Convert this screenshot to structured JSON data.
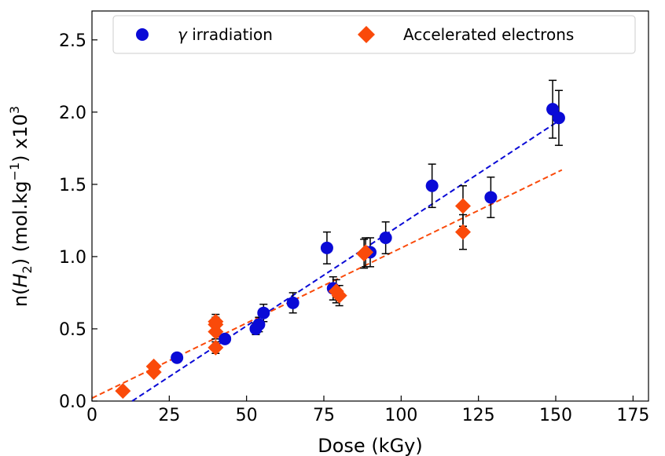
{
  "chart_data": {
    "type": "scatter",
    "title": "",
    "xlabel": "Dose (kGy)",
    "ylabel_prefix": "n(",
    "ylabel_var": "H",
    "ylabel_sub": "2",
    "ylabel_mid": ") (mol.kg",
    "ylabel_sup": "−1",
    "ylabel_suffix": ") x10",
    "ylabel_exp": "3",
    "xlim": [
      0,
      180
    ],
    "ylim": [
      0,
      2.7
    ],
    "xticks": [
      0,
      25,
      50,
      75,
      100,
      125,
      150,
      175
    ],
    "yticks": [
      0.0,
      0.5,
      1.0,
      1.5,
      2.0,
      2.5
    ],
    "xtick_labels": [
      "0",
      "25",
      "50",
      "75",
      "100",
      "125",
      "150",
      "175"
    ],
    "ytick_labels": [
      "0.0",
      "0.5",
      "1.0",
      "1.5",
      "2.0",
      "2.5"
    ],
    "grid": false,
    "legend_position": "top-center",
    "series": [
      {
        "name_symbol": "γ",
        "name_rest": " irradiation",
        "marker": "circle",
        "color": "#0a0ad6",
        "points": [
          {
            "x": 27.5,
            "y": 0.3,
            "err": 0.02
          },
          {
            "x": 43.0,
            "y": 0.43,
            "err": 0.03
          },
          {
            "x": 53.0,
            "y": 0.5,
            "err": 0.04
          },
          {
            "x": 54.0,
            "y": 0.53,
            "err": 0.05
          },
          {
            "x": 55.5,
            "y": 0.61,
            "err": 0.06
          },
          {
            "x": 65.0,
            "y": 0.68,
            "err": 0.07
          },
          {
            "x": 76.0,
            "y": 1.06,
            "err": 0.11
          },
          {
            "x": 78.0,
            "y": 0.78,
            "err": 0.08
          },
          {
            "x": 90.0,
            "y": 1.03,
            "err": 0.1
          },
          {
            "x": 95.0,
            "y": 1.13,
            "err": 0.11
          },
          {
            "x": 110.0,
            "y": 1.49,
            "err": 0.15
          },
          {
            "x": 129.0,
            "y": 1.41,
            "err": 0.14
          },
          {
            "x": 149.0,
            "y": 2.02,
            "err": 0.2
          },
          {
            "x": 151.0,
            "y": 1.96,
            "err": 0.19
          }
        ],
        "fit": {
          "x0": 13,
          "y0": 0.0,
          "x1": 151,
          "y1": 1.94
        }
      },
      {
        "name": "Accelerated electrons",
        "marker": "diamond",
        "color": "#fa4a0a",
        "points": [
          {
            "x": 10.0,
            "y": 0.07,
            "err": 0.01
          },
          {
            "x": 20.0,
            "y": 0.2,
            "err": 0.02
          },
          {
            "x": 20.0,
            "y": 0.24,
            "err": 0.02
          },
          {
            "x": 40.0,
            "y": 0.37,
            "err": 0.04
          },
          {
            "x": 40.0,
            "y": 0.48,
            "err": 0.05
          },
          {
            "x": 40.0,
            "y": 0.53,
            "err": 0.05
          },
          {
            "x": 40.0,
            "y": 0.55,
            "err": 0.05
          },
          {
            "x": 79.0,
            "y": 0.76,
            "err": 0.08
          },
          {
            "x": 80.0,
            "y": 0.73,
            "err": 0.07
          },
          {
            "x": 88.0,
            "y": 1.02,
            "err": 0.1
          },
          {
            "x": 88.5,
            "y": 1.03,
            "err": 0.1
          },
          {
            "x": 120.0,
            "y": 1.17,
            "err": 0.12
          },
          {
            "x": 120.0,
            "y": 1.35,
            "err": 0.14
          }
        ],
        "fit": {
          "x0": 0,
          "y0": 0.02,
          "x1": 152,
          "y1": 1.6
        }
      }
    ]
  }
}
